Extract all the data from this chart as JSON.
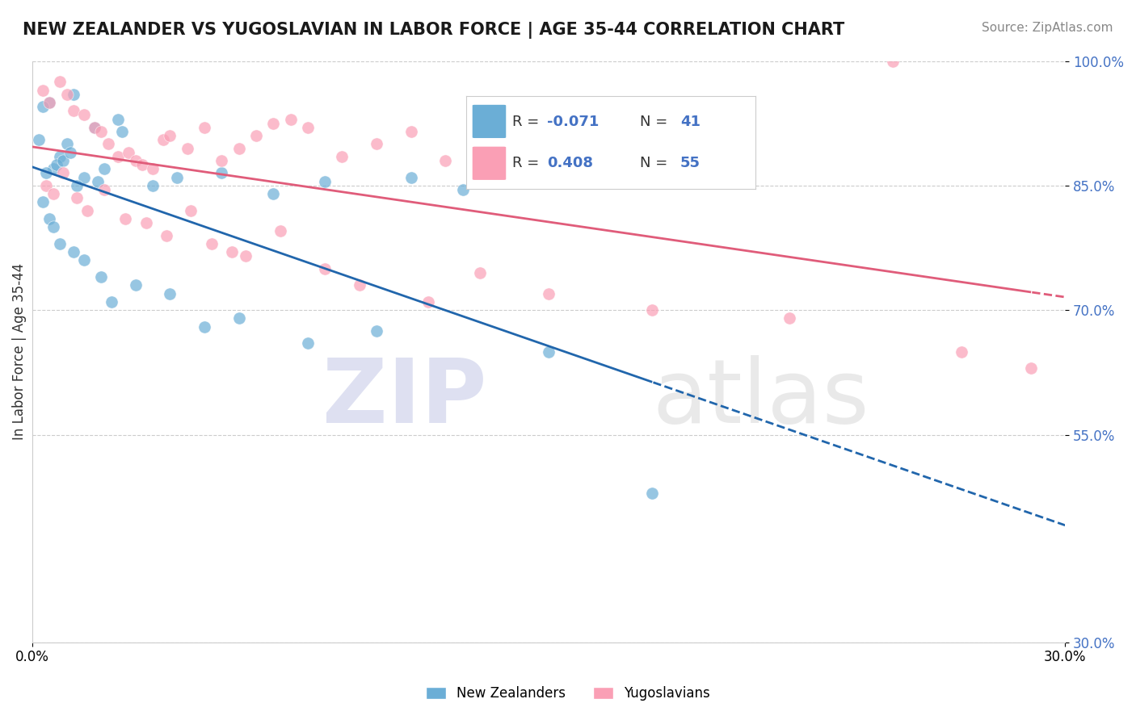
{
  "title": "NEW ZEALANDER VS YUGOSLAVIAN IN LABOR FORCE | AGE 35-44 CORRELATION CHART",
  "source": "Source: ZipAtlas.com",
  "ylabel": "In Labor Force | Age 35-44",
  "xmin": 0.0,
  "xmax": 30.0,
  "ymin": 30.0,
  "ymax": 100.0,
  "yticks": [
    30.0,
    55.0,
    70.0,
    85.0,
    100.0
  ],
  "ytick_labels": [
    "30.0%",
    "55.0%",
    "70.0%",
    "85.0%",
    "100.0%"
  ],
  "blue_color": "#6baed6",
  "pink_color": "#fa9fb5",
  "blue_line_color": "#2166ac",
  "pink_line_color": "#e05c7a",
  "background_color": "#ffffff",
  "new_zealanders_x": [
    1.2,
    0.5,
    0.3,
    2.5,
    2.6,
    1.8,
    1.0,
    0.8,
    0.6,
    0.4,
    0.7,
    0.9,
    1.1,
    0.2,
    1.5,
    1.3,
    0.3,
    0.5,
    1.9,
    2.1,
    3.5,
    4.2,
    5.5,
    7.0,
    8.5,
    11.0,
    12.5,
    0.6,
    0.8,
    1.2,
    1.5,
    2.0,
    2.3,
    3.0,
    4.0,
    5.0,
    6.0,
    8.0,
    10.0,
    15.0,
    18.0
  ],
  "new_zealanders_y": [
    96.0,
    95.0,
    94.5,
    93.0,
    91.5,
    92.0,
    90.0,
    88.5,
    87.0,
    86.5,
    87.5,
    88.0,
    89.0,
    90.5,
    86.0,
    85.0,
    83.0,
    81.0,
    85.5,
    87.0,
    85.0,
    86.0,
    86.5,
    84.0,
    85.5,
    86.0,
    84.5,
    80.0,
    78.0,
    77.0,
    76.0,
    74.0,
    71.0,
    73.0,
    72.0,
    68.0,
    69.0,
    66.0,
    67.5,
    65.0,
    48.0
  ],
  "yugoslavians_x": [
    0.3,
    0.5,
    0.8,
    1.0,
    1.2,
    1.5,
    1.8,
    2.0,
    2.2,
    2.5,
    2.8,
    3.0,
    3.2,
    3.5,
    3.8,
    4.0,
    4.5,
    5.0,
    5.5,
    6.0,
    6.5,
    7.0,
    7.5,
    8.0,
    9.0,
    10.0,
    11.0,
    12.0,
    14.0,
    16.0,
    20.0,
    25.0,
    0.4,
    0.6,
    0.9,
    1.3,
    1.6,
    2.1,
    2.7,
    3.3,
    3.9,
    4.6,
    5.2,
    5.8,
    6.2,
    7.2,
    8.5,
    9.5,
    11.5,
    13.0,
    15.0,
    18.0,
    22.0,
    27.0,
    29.0
  ],
  "yugoslavians_y": [
    96.5,
    95.0,
    97.5,
    96.0,
    94.0,
    93.5,
    92.0,
    91.5,
    90.0,
    88.5,
    89.0,
    88.0,
    87.5,
    87.0,
    90.5,
    91.0,
    89.5,
    92.0,
    88.0,
    89.5,
    91.0,
    92.5,
    93.0,
    92.0,
    88.5,
    90.0,
    91.5,
    88.0,
    92.0,
    86.0,
    87.5,
    100.0,
    85.0,
    84.0,
    86.5,
    83.5,
    82.0,
    84.5,
    81.0,
    80.5,
    79.0,
    82.0,
    78.0,
    77.0,
    76.5,
    79.5,
    75.0,
    73.0,
    71.0,
    74.5,
    72.0,
    70.0,
    69.0,
    65.0,
    63.0
  ]
}
